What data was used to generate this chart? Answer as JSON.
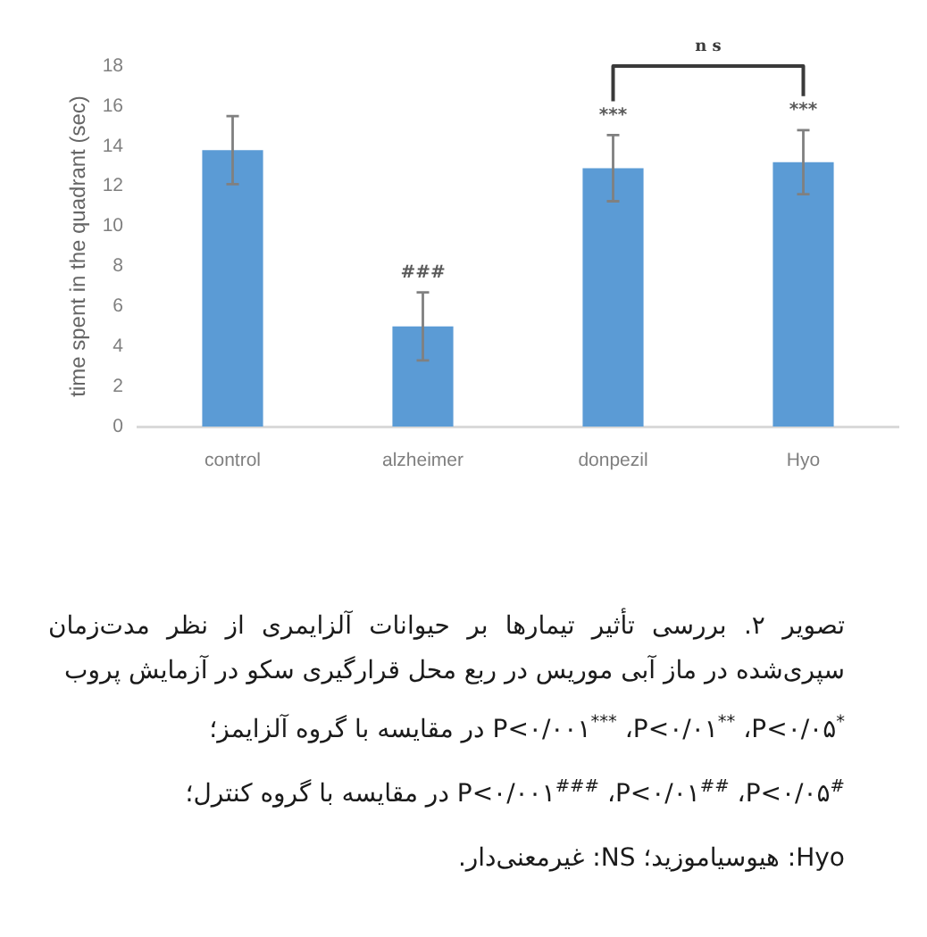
{
  "chart_data": {
    "type": "bar",
    "ylabel": "time spent in the quadrant (sec)",
    "categories": [
      "control",
      "alzheimer",
      "donpezil",
      "Hyo"
    ],
    "values": [
      13.8,
      5.0,
      12.9,
      13.2
    ],
    "errors": [
      1.7,
      1.7,
      1.65,
      1.6
    ],
    "value_labels": [
      null,
      "###",
      "***",
      "***"
    ],
    "color": "#5b9bd5",
    "ylim": [
      0,
      18
    ],
    "yticks": [
      0,
      2,
      4,
      6,
      8,
      10,
      12,
      14,
      16,
      18
    ],
    "annotations": [
      "n s",
      "تصویر ۲. بررسی تأثیر تیمارها بر حیوانات آلزایمری از نظر مدت‌زمان سپری‌شده در ماز آبی موریس در ربع محل قرارگیری سکو در آزمایش پروب",
      "$^{*}$P<۰/۰۵، $^{**}$P<۰/۰۱، $^{***}$P<۰/۰۰۱ در مقایسه با گروه آلزایمز؛",
      "$^{#}$P<۰/۰۵، $^{##}$P<۰/۰۱، $^{###}$P<۰/۰۰۱ در مقایسه با گروه کنترل؛",
      "Hyo: هیوسیاموزید؛ NS: غیرمعنی‌دار."
    ]
  }
}
